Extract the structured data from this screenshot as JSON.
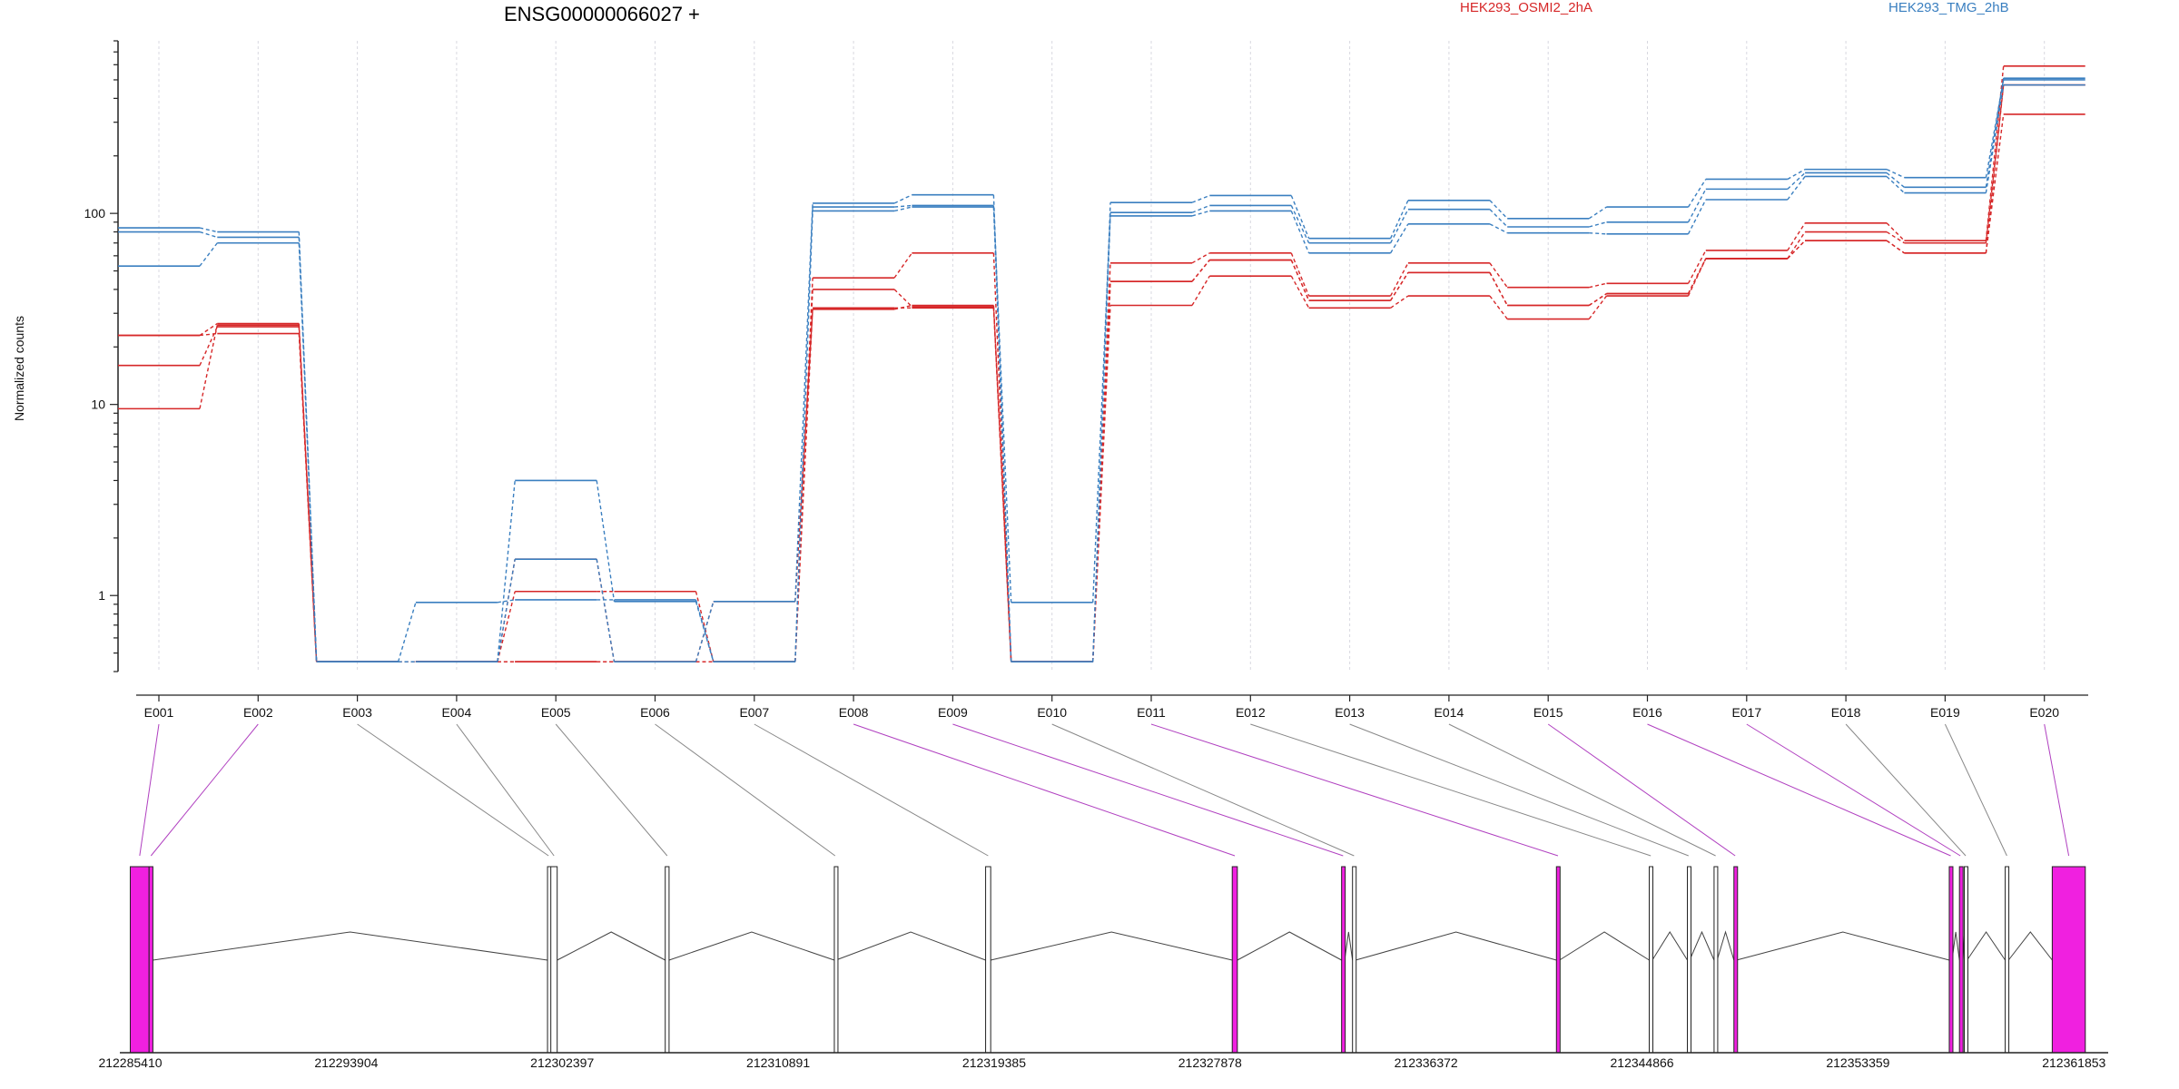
{
  "header": {
    "title": "ENSG00000066027 +",
    "legend": [
      {
        "name": "HEK293_OSMI2_2hA",
        "color": "#d62728"
      },
      {
        "name": "HEK293_TMG_2hB",
        "color": "#3a7fc0"
      }
    ]
  },
  "colors": {
    "red": "#d62728",
    "blue": "#3a7fc0",
    "highlight_exon": "#f020e0",
    "highlight_line": "#b040c0",
    "neutral_line": "#888888",
    "grid": "#d8d8e0"
  },
  "chart_data": [
    {
      "type": "line",
      "ylabel": "Normalized counts",
      "yscale": "log",
      "ylim": [
        0.4,
        800
      ],
      "yticks": [
        {
          "value": 1,
          "label": "1"
        },
        {
          "value": 10,
          "label": "10"
        },
        {
          "value": 100,
          "label": "100"
        }
      ],
      "categories": [
        "E001",
        "E002",
        "E003",
        "E004",
        "E005",
        "E006",
        "E007",
        "E008",
        "E009",
        "E010",
        "E011",
        "E012",
        "E013",
        "E014",
        "E015",
        "E016",
        "E017",
        "E018",
        "E019",
        "E020"
      ],
      "series": [
        {
          "group": "HEK293_OSMI2_2hA",
          "values": [
            9.5,
            26,
            0.45,
            0.45,
            1.05,
            1.05,
            0.45,
            32,
            32,
            0.45,
            33,
            47,
            32,
            37,
            28,
            37,
            58,
            72,
            62,
            330
          ]
        },
        {
          "group": "HEK293_OSMI2_2hA",
          "values": [
            16,
            25.5,
            0.45,
            0.45,
            0.45,
            0.45,
            0.45,
            40,
            32.5,
            0.45,
            44,
            57,
            35,
            49,
            33,
            38,
            58,
            80,
            70,
            470
          ]
        },
        {
          "group": "HEK293_OSMI2_2hA",
          "values": [
            23,
            26.5,
            0.45,
            0.45,
            0.45,
            0.45,
            0.45,
            46,
            62,
            0.45,
            55,
            62,
            37,
            55,
            41,
            43,
            64,
            89,
            72,
            590
          ]
        },
        {
          "group": "HEK293_OSMI2_2hA",
          "values": [
            23,
            23.5,
            0.45,
            0.45,
            1.55,
            0.45,
            0.93,
            31.5,
            33,
            0.45,
            44,
            57,
            35,
            49,
            33,
            38,
            58,
            72,
            62,
            470
          ]
        },
        {
          "group": "HEK293_TMG_2hB",
          "values": [
            53,
            70,
            0.45,
            0.45,
            4,
            0.93,
            0.45,
            103,
            108,
            0.45,
            97,
            103,
            62,
            88,
            79,
            78,
            118,
            156,
            128,
            470
          ]
        },
        {
          "group": "HEK293_TMG_2hB",
          "values": [
            80,
            75,
            0.45,
            0.92,
            0.95,
            0.95,
            0.45,
            108,
            110,
            0.92,
            101,
            110,
            70,
            105,
            85,
            90,
            134,
            163,
            137,
            510
          ]
        },
        {
          "group": "HEK293_TMG_2hB",
          "values": [
            84,
            80,
            0.45,
            0.45,
            1.55,
            0.45,
            0.93,
            113,
            125,
            0.45,
            114,
            124,
            74,
            117,
            94,
            108,
            151,
            170,
            154,
            500
          ]
        }
      ]
    },
    {
      "type": "gene-model",
      "xlim": [
        212285000,
        212363200
      ],
      "xticks": [
        {
          "value": 212285410,
          "label": "212285410"
        },
        {
          "value": 212293904,
          "label": "212293904"
        },
        {
          "value": 212302397,
          "label": "212302397"
        },
        {
          "value": 212310891,
          "label": "212310891"
        },
        {
          "value": 212319385,
          "label": "212319385"
        },
        {
          "value": 212327878,
          "label": "212327878"
        },
        {
          "value": 212336372,
          "label": "212336372"
        },
        {
          "value": 212344866,
          "label": "212344866"
        },
        {
          "value": 212353359,
          "label": "212353359"
        },
        {
          "value": 212361853,
          "label": "212361853"
        }
      ],
      "exons": [
        {
          "id": "E001",
          "start": 212285410,
          "end": 212286150,
          "highlight": true
        },
        {
          "id": "E002",
          "start": 212286150,
          "end": 212286300,
          "highlight": true
        },
        {
          "id": "E003",
          "start": 212301820,
          "end": 212301900,
          "highlight": false
        },
        {
          "id": "E004",
          "start": 212301950,
          "end": 212302200,
          "highlight": false
        },
        {
          "id": "E005",
          "start": 212306450,
          "end": 212306600,
          "highlight": false
        },
        {
          "id": "E006",
          "start": 212313100,
          "end": 212313160,
          "highlight": false
        },
        {
          "id": "E007",
          "start": 212319050,
          "end": 212319250,
          "highlight": false
        },
        {
          "id": "E008",
          "start": 212328750,
          "end": 212328950,
          "highlight": true
        },
        {
          "id": "E009",
          "start": 212333050,
          "end": 212333170,
          "highlight": true
        },
        {
          "id": "E010",
          "start": 212333480,
          "end": 212333600,
          "highlight": false
        },
        {
          "id": "E011",
          "start": 212341500,
          "end": 212341620,
          "highlight": true
        },
        {
          "id": "E012",
          "start": 212345150,
          "end": 212345270,
          "highlight": false
        },
        {
          "id": "E013",
          "start": 212346650,
          "end": 212346740,
          "highlight": false
        },
        {
          "id": "E014",
          "start": 212347700,
          "end": 212347820,
          "highlight": false
        },
        {
          "id": "E015",
          "start": 212348480,
          "end": 212348580,
          "highlight": true
        },
        {
          "id": "E016",
          "start": 212356950,
          "end": 212357060,
          "highlight": true
        },
        {
          "id": "E017",
          "start": 212357350,
          "end": 212357420,
          "highlight": true
        },
        {
          "id": "E018",
          "start": 212357540,
          "end": 212357650,
          "highlight": false
        },
        {
          "id": "E019",
          "start": 212359150,
          "end": 212359280,
          "highlight": false
        },
        {
          "id": "E020",
          "start": 212361000,
          "end": 212362300,
          "highlight": true
        }
      ]
    }
  ]
}
